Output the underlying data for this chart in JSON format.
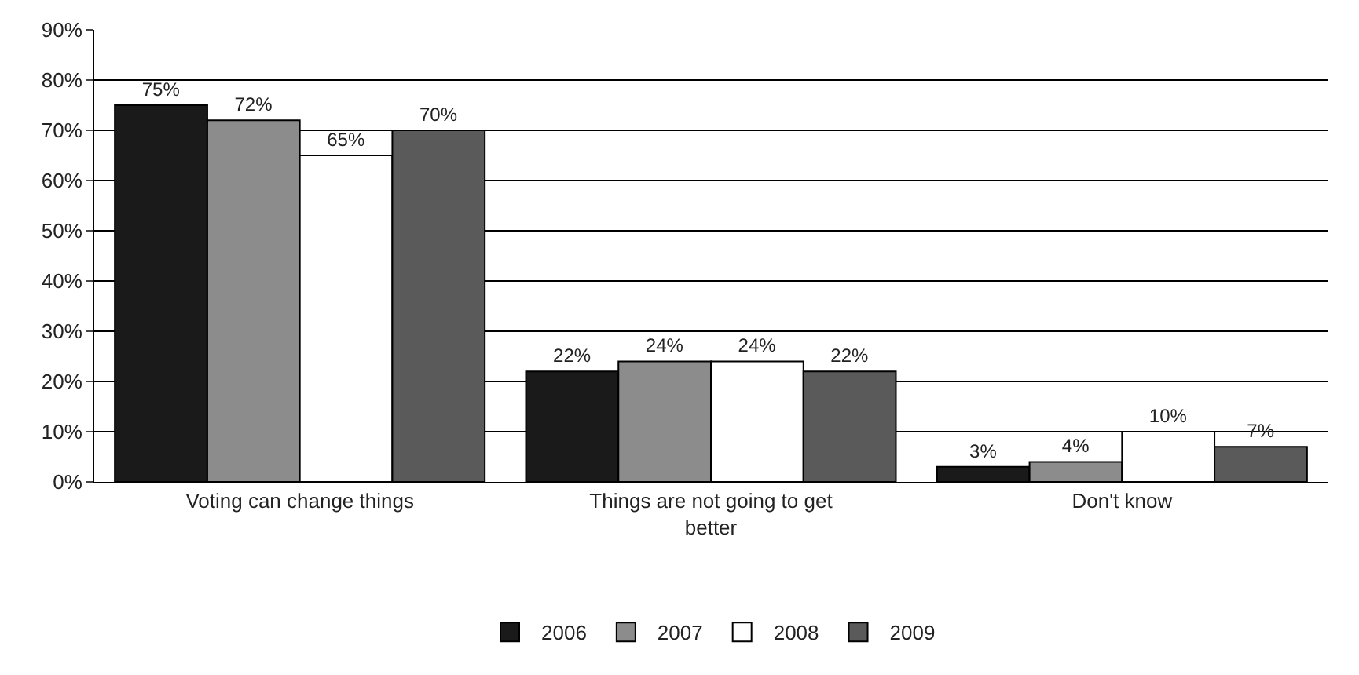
{
  "chart_data": {
    "type": "bar",
    "categories": [
      "Voting can change things",
      "Things are not going to get better",
      "Don't know"
    ],
    "series": [
      {
        "name": "2006",
        "color": "#1a1a1a",
        "values": [
          75,
          22,
          3
        ],
        "value_labels": [
          "75%",
          "22%",
          "3%"
        ]
      },
      {
        "name": "2007",
        "color": "#8c8c8c",
        "values": [
          72,
          24,
          4
        ],
        "value_labels": [
          "72%",
          "24%",
          "4%"
        ]
      },
      {
        "name": "2008",
        "color": "#ffffff",
        "values": [
          65,
          24,
          10
        ],
        "value_labels": [
          "65%",
          "24%",
          "10%"
        ]
      },
      {
        "name": "2009",
        "color": "#5a5a5a",
        "values": [
          70,
          22,
          7
        ],
        "value_labels": [
          "70%",
          "22%",
          "7%"
        ]
      }
    ],
    "ylim": [
      0,
      90
    ],
    "yticks": [
      {
        "value": 0,
        "label": "0%"
      },
      {
        "value": 10,
        "label": "10%"
      },
      {
        "value": 20,
        "label": "20%"
      },
      {
        "value": 30,
        "label": "30%"
      },
      {
        "value": 40,
        "label": "40%"
      },
      {
        "value": 50,
        "label": "50%"
      },
      {
        "value": 60,
        "label": "60%"
      },
      {
        "value": 70,
        "label": "70%"
      },
      {
        "value": 80,
        "label": "80%"
      },
      {
        "value": 90,
        "label": "90%"
      }
    ],
    "grid": "y",
    "legend": "bottom"
  }
}
